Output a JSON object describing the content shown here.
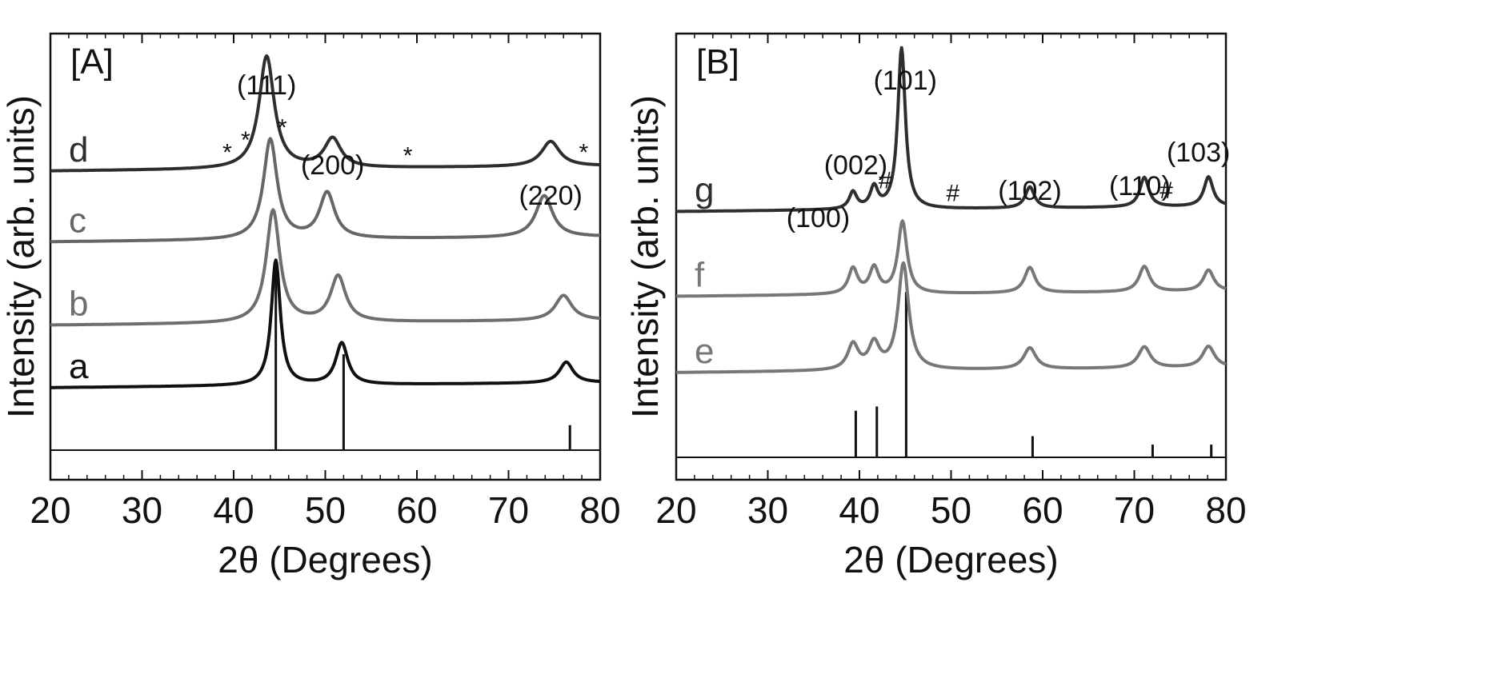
{
  "chart_data": [
    {
      "type": "line",
      "panel": "[A]",
      "xlabel": "2θ (Degrees)",
      "ylabel": "Intensity (arb. units)",
      "xlim": [
        20,
        80
      ],
      "xticks": [
        "20",
        "30",
        "40",
        "50",
        "60",
        "70",
        "80"
      ],
      "series": [
        {
          "name": "d",
          "color": "#2e2e2e",
          "offset": 0.67,
          "peaks": [
            [
              43.6,
              0.27,
              1.0
            ],
            [
              50.8,
              0.07,
              1.1
            ],
            [
              74.6,
              0.06,
              1.2
            ]
          ]
        },
        {
          "name": "c",
          "color": "#666666",
          "offset": 0.5,
          "peaks": [
            [
              44.0,
              0.24,
              0.9
            ],
            [
              50.2,
              0.11,
              1.0
            ],
            [
              73.9,
              0.1,
              1.1
            ]
          ]
        },
        {
          "name": "b",
          "color": "#6e6e6e",
          "offset": 0.3,
          "peaks": [
            [
              44.3,
              0.27,
              0.9
            ],
            [
              51.4,
              0.11,
              1.0
            ],
            [
              76.0,
              0.06,
              1.1
            ]
          ]
        },
        {
          "name": "a",
          "color": "#101010",
          "offset": 0.15,
          "peaks": [
            [
              44.6,
              0.3,
              0.6
            ],
            [
              51.8,
              0.1,
              0.8
            ],
            [
              76.3,
              0.05,
              0.9
            ]
          ]
        }
      ],
      "reference_lines": [
        [
          44.6,
          0.45
        ],
        [
          52.0,
          0.23
        ],
        [
          76.7,
          0.06
        ]
      ],
      "peak_labels": [
        {
          "text": "(111)",
          "x": 43.6
        },
        {
          "text": "(200)",
          "x": 50.8
        },
        {
          "text": "(220)",
          "x": 74.6
        }
      ],
      "markers": [
        {
          "text": "*",
          "x": 39.3
        },
        {
          "text": "*",
          "x": 41.3
        },
        {
          "text": "*",
          "x": 45.3
        },
        {
          "text": "*",
          "x": 59.0
        },
        {
          "text": "*",
          "x": 78.2
        }
      ]
    },
    {
      "type": "line",
      "panel": "[B]",
      "xlabel": "2θ (Degrees)",
      "ylabel": "Intensity (arb. units)",
      "xlim": [
        20,
        80
      ],
      "xticks": [
        "20",
        "30",
        "40",
        "50",
        "60",
        "70",
        "80"
      ],
      "series": [
        {
          "name": "g",
          "color": "#2e2e2e",
          "offset": 0.58,
          "peaks": [
            [
              39.3,
              0.04,
              0.5
            ],
            [
              41.6,
              0.05,
              0.5
            ],
            [
              44.6,
              0.38,
              0.5
            ],
            [
              58.6,
              0.05,
              0.6
            ],
            [
              71.1,
              0.07,
              0.6
            ],
            [
              78.1,
              0.07,
              0.6
            ]
          ]
        },
        {
          "name": "f",
          "color": "#777777",
          "offset": 0.38,
          "peaks": [
            [
              39.3,
              0.06,
              0.6
            ],
            [
              41.6,
              0.06,
              0.6
            ],
            [
              44.7,
              0.17,
              0.6
            ],
            [
              58.6,
              0.06,
              0.7
            ],
            [
              71.1,
              0.06,
              0.7
            ],
            [
              78.1,
              0.05,
              0.7
            ]
          ]
        },
        {
          "name": "e",
          "color": "#777777",
          "offset": 0.2,
          "peaks": [
            [
              39.3,
              0.06,
              0.7
            ],
            [
              41.6,
              0.06,
              0.7
            ],
            [
              44.8,
              0.25,
              0.7
            ],
            [
              58.6,
              0.05,
              0.8
            ],
            [
              71.1,
              0.05,
              0.8
            ],
            [
              78.1,
              0.05,
              0.8
            ]
          ]
        }
      ],
      "reference_lines": [
        [
          39.6,
          0.11
        ],
        [
          41.9,
          0.12
        ],
        [
          45.1,
          0.39
        ],
        [
          58.9,
          0.05
        ],
        [
          72.0,
          0.03
        ],
        [
          78.4,
          0.03
        ]
      ],
      "peak_labels": [
        {
          "text": "(100)",
          "x": 35.5
        },
        {
          "text": "(002)",
          "x": 39.6
        },
        {
          "text": "(101)",
          "x": 45.0
        },
        {
          "text": "(102)",
          "x": 58.6
        },
        {
          "text": "(110)",
          "x": 70.6
        },
        {
          "text": "(103)",
          "x": 77.0
        }
      ],
      "markers": [
        {
          "text": "#",
          "x": 42.8
        },
        {
          "text": "#",
          "x": 50.2
        },
        {
          "text": "#",
          "x": 73.5
        }
      ]
    }
  ]
}
